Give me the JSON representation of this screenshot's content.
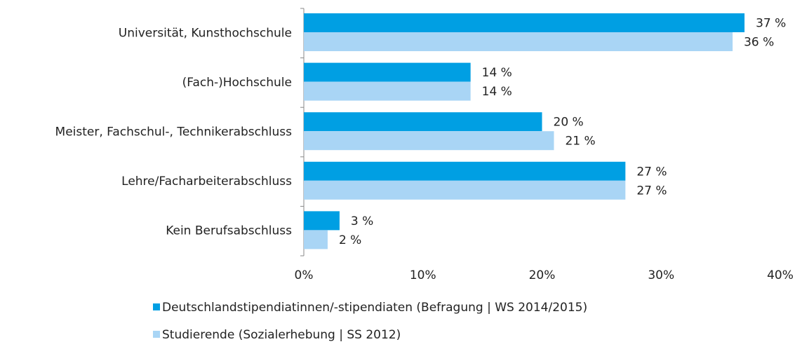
{
  "chart_data": {
    "type": "bar",
    "orientation": "horizontal",
    "categories": [
      "Universität, Kunsthochschule",
      "(Fach-)Hochschule",
      "Meister, Fachschul-, Technikerabschluss",
      "Lehre/Facharbeiterabschluss",
      "Kein Berufsabschluss"
    ],
    "series": [
      {
        "name": "Deutschlandstipendiatinnen/-stipendiaten (Befragung | WS 2014/2015)",
        "color": "#009fe3",
        "values": [
          37,
          14,
          20,
          27,
          3
        ],
        "value_labels": [
          "37 %",
          "14 %",
          "20 %",
          "27 %",
          "3 %"
        ]
      },
      {
        "name": "Studierende (Sozialerhebung | SS 2012)",
        "color": "#a9d5f5",
        "values": [
          36,
          14,
          21,
          27,
          2
        ],
        "value_labels": [
          "36 %",
          "14 %",
          "21 %",
          "27 %",
          "2 %"
        ]
      }
    ],
    "xlim": [
      0,
      40
    ],
    "xticks": [
      {
        "value": 0,
        "label": "0%"
      },
      {
        "value": 10,
        "label": "10%"
      },
      {
        "value": 20,
        "label": "20%"
      },
      {
        "value": 30,
        "label": "30%"
      },
      {
        "value": 40,
        "label": "40%"
      }
    ],
    "legend": "bottom"
  }
}
